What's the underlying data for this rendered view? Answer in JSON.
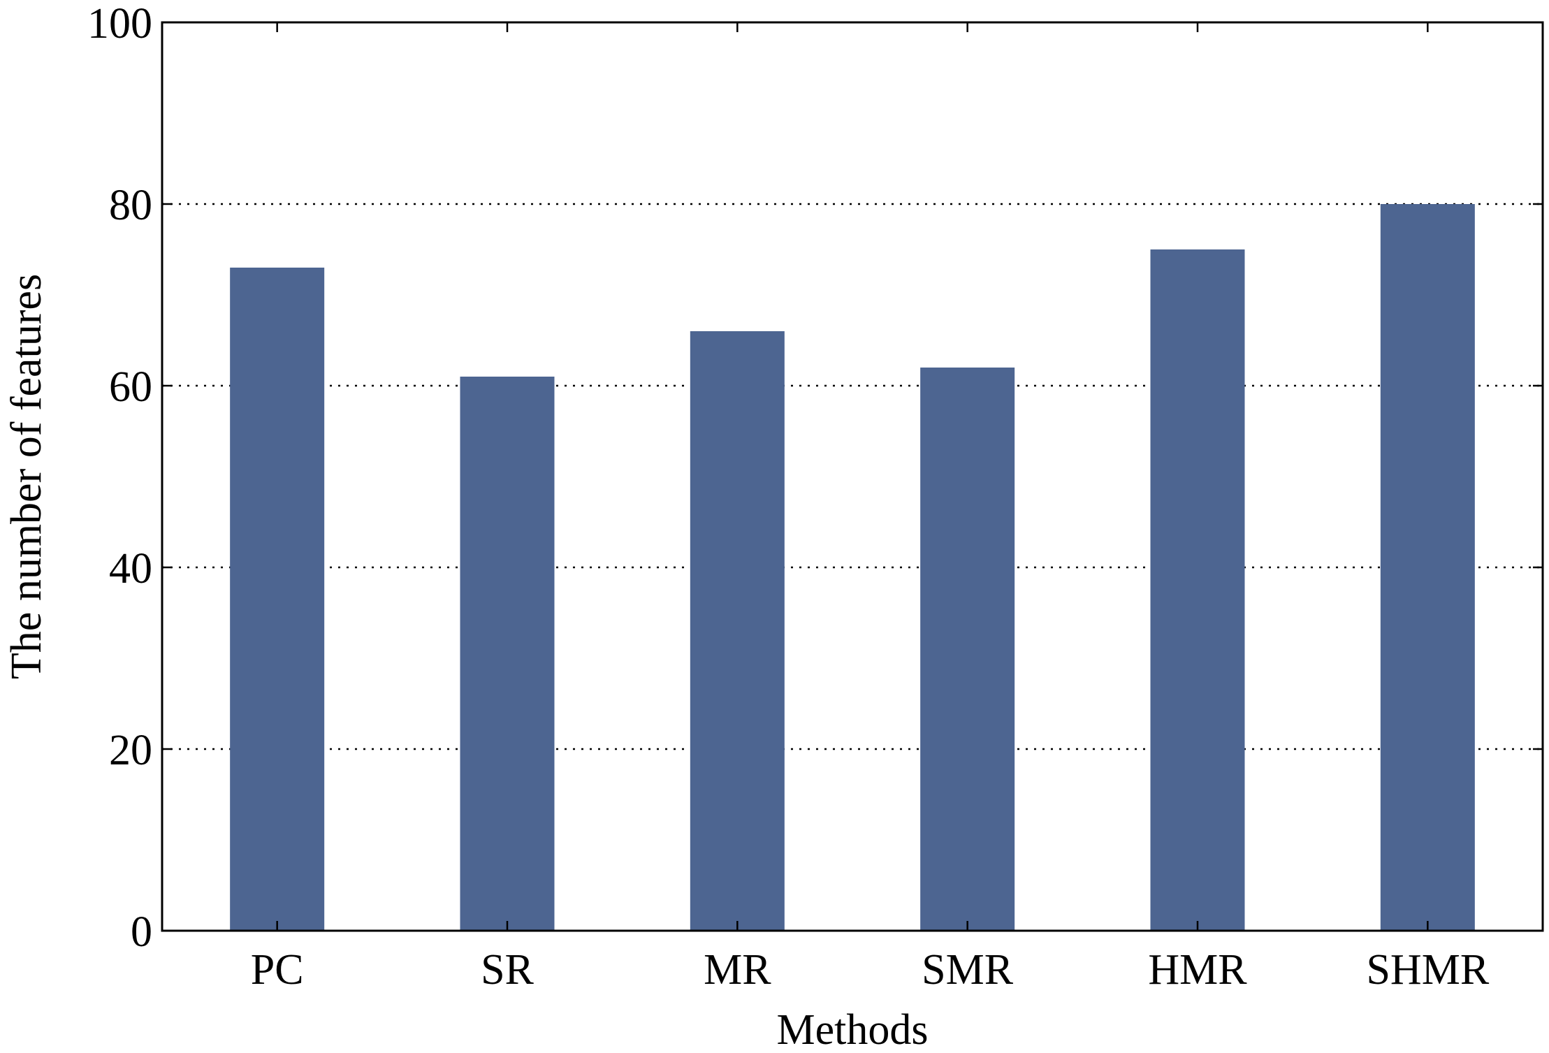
{
  "chart_data": {
    "type": "bar",
    "categories": [
      "PC",
      "SR",
      "MR",
      "SMR",
      "HMR",
      "SHMR"
    ],
    "values": [
      73,
      61,
      66,
      62,
      75,
      80
    ],
    "title": "",
    "xlabel": "Methods",
    "ylabel": "The number of features",
    "ylim": [
      0,
      100
    ],
    "yticks": [
      0,
      20,
      40,
      60,
      80,
      100
    ],
    "grid": "horizontal dotted",
    "legend": "none",
    "bar_color": "#4d6591",
    "axis_color": "#000000",
    "grid_color": "#000000",
    "background": "#ffffff"
  }
}
